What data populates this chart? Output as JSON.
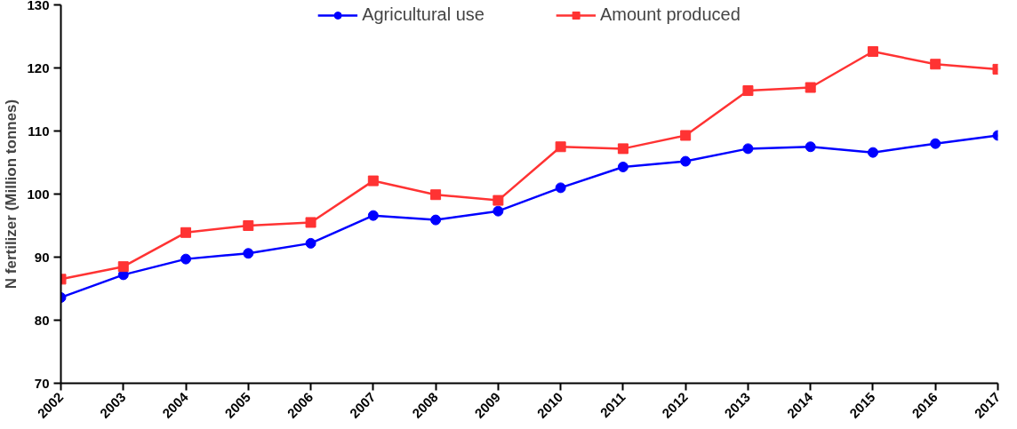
{
  "chart_data": {
    "type": "line",
    "ylabel": "N fertilizer (Million tonnes)",
    "categories": [
      "2002",
      "2003",
      "2004",
      "2005",
      "2006",
      "2007",
      "2008",
      "2009",
      "2010",
      "2011",
      "2012",
      "2013",
      "2014",
      "2015",
      "2016",
      "2017"
    ],
    "series": [
      {
        "name": "Agricultural use",
        "color": "#0000ff",
        "marker": "circle",
        "values": [
          83.6,
          87.2,
          89.7,
          90.6,
          92.2,
          96.6,
          95.9,
          97.3,
          101.0,
          104.3,
          105.2,
          107.2,
          107.5,
          106.6,
          108.0,
          109.3
        ]
      },
      {
        "name": "Amount produced",
        "color": "#ff3333",
        "marker": "square",
        "values": [
          86.5,
          88.5,
          93.9,
          95.0,
          95.5,
          102.1,
          99.9,
          99.0,
          107.5,
          107.2,
          109.3,
          116.4,
          116.9,
          122.6,
          120.6,
          119.8
        ]
      }
    ],
    "ylim": [
      70,
      130
    ],
    "yticks": [
      70,
      80,
      90,
      100,
      110,
      120,
      130
    ],
    "grid": false,
    "legend": "top",
    "line_style": "solid"
  }
}
